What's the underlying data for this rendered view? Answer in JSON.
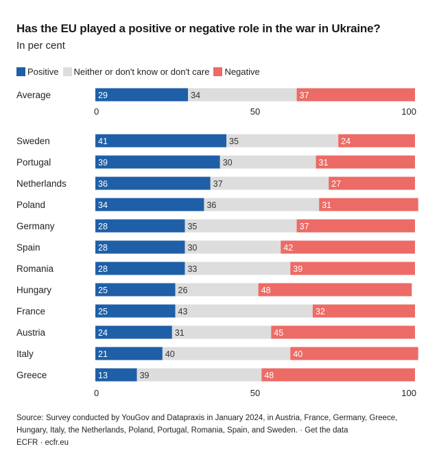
{
  "header": {
    "title": "Has the EU played a positive or negative role in the war in Ukraine?",
    "subtitle": "In per cent"
  },
  "legend": [
    {
      "label": "Positive",
      "color": "#1f5fa8"
    },
    {
      "label": "Neither or don't know or don't care",
      "color": "#dddddd"
    },
    {
      "label": "Negative",
      "color": "#ec6b66"
    }
  ],
  "chart_data": {
    "type": "bar",
    "stacked": true,
    "orientation": "horizontal",
    "xlim": [
      0,
      100
    ],
    "xticks": [
      0,
      50,
      100
    ],
    "series_names": [
      "Positive",
      "Neither or don't know or don't care",
      "Negative"
    ],
    "series_colors": [
      "#1f5fa8",
      "#dddddd",
      "#ec6b66"
    ],
    "average": {
      "category": "Average",
      "values": [
        29,
        34,
        37
      ]
    },
    "categories": [
      "Sweden",
      "Portugal",
      "Netherlands",
      "Poland",
      "Germany",
      "Spain",
      "Romania",
      "Hungary",
      "France",
      "Austria",
      "Italy",
      "Greece"
    ],
    "series": [
      {
        "name": "Positive",
        "values": [
          41,
          39,
          36,
          34,
          28,
          28,
          28,
          25,
          25,
          24,
          21,
          13
        ]
      },
      {
        "name": "Neither or don't know or don't care",
        "values": [
          35,
          30,
          37,
          36,
          35,
          30,
          33,
          26,
          43,
          31,
          40,
          39
        ]
      },
      {
        "name": "Negative",
        "values": [
          24,
          31,
          27,
          31,
          37,
          42,
          39,
          48,
          32,
          45,
          40,
          48
        ]
      }
    ]
  },
  "footer": {
    "source": "Source: Survey conducted by YouGov and Datapraxis in January 2024, in Austria, France, Germany, Greece, Hungary, Italy, the Netherlands, Poland, Portugal, Romania, Spain, and Sweden. · Get the data",
    "credit": "ECFR · ecfr.eu"
  }
}
